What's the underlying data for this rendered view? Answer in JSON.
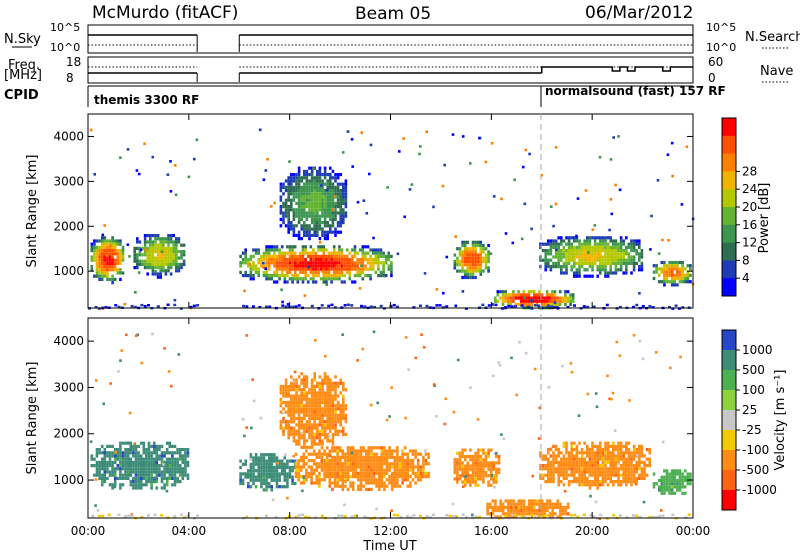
{
  "header": {
    "station": "McMurdo (fitACF)",
    "beam": "Beam 05",
    "date": "06/Mar/2012"
  },
  "strip_labels": {
    "nsky_1": "N.Sky",
    "nsearch_1": "N.Search",
    "freq_1": "Freq.",
    "freq_2": "[MHz]",
    "nave": "Nave",
    "cpid": "CPID"
  },
  "cpid_modes": [
    {
      "name": "themis 3300 RF",
      "start_hour": 0.0
    },
    {
      "name": "normalsound (fast) 157 RF",
      "start_hour": 18.0
    }
  ],
  "chart_data": [
    {
      "type": "line",
      "name": "noise",
      "y_left_ticks": [
        "10^5",
        "10^0"
      ],
      "y_right_ticks": [
        "10^5",
        "10^0"
      ],
      "series": [
        {
          "name": "N.Sky",
          "style": "solid",
          "segments": [
            [
              0,
              4.33
            ],
            [
              6,
              24
            ]
          ],
          "level_log10": 3.2
        },
        {
          "name": "N.Search",
          "style": "dotted",
          "segments": [
            [
              0,
              4.33
            ],
            [
              6,
              24
            ]
          ],
          "level_log10": 1.0
        }
      ]
    },
    {
      "type": "line",
      "name": "frequency-nave",
      "y_left_ticks": [
        "18",
        "8"
      ],
      "y_right_ticks": [
        "60",
        "0"
      ],
      "series": [
        {
          "name": "Freq",
          "style": "solid",
          "segments": [
            [
              0,
              4.33
            ],
            [
              6,
              18
            ]
          ],
          "value_mhz": 11.0
        },
        {
          "name": "Nave",
          "style": "dotted",
          "segments": [
            [
              0,
              4.33
            ],
            [
              6,
              24
            ]
          ],
          "value": 35
        }
      ]
    },
    {
      "type": "heatmap",
      "name": "power",
      "xlabel": "",
      "ylabel": "Slant Range [km]",
      "xlim": [
        0,
        24
      ],
      "ylim": [
        180,
        4500
      ],
      "y_ticks": [
        "1000",
        "2000",
        "3000",
        "4000"
      ],
      "colorbar": {
        "label": "Power [dB]",
        "ticks": [
          "4",
          "8",
          "12",
          "16",
          "20",
          "24",
          "28"
        ],
        "colors": [
          "#0000ff",
          "#1e3cb4",
          "#2d6e50",
          "#3c9650",
          "#64b432",
          "#b4c800",
          "#f0b400",
          "#ff8000",
          "#ff5000",
          "#ff0000"
        ]
      },
      "regions": [
        {
          "x0": 0.1,
          "x1": 1.4,
          "y0": 750,
          "y1": 1850,
          "peak": 28
        },
        {
          "x0": 1.8,
          "x1": 3.8,
          "y0": 900,
          "y1": 1900,
          "peak": 18
        },
        {
          "x0": 6.0,
          "x1": 12.0,
          "y0": 750,
          "y1": 1650,
          "peak": 28
        },
        {
          "x0": 7.6,
          "x1": 10.2,
          "y0": 1700,
          "y1": 3400,
          "peak": 12
        },
        {
          "x0": 14.5,
          "x1": 15.9,
          "y0": 850,
          "y1": 1750,
          "peak": 26
        },
        {
          "x0": 16.0,
          "x1": 19.2,
          "y0": 180,
          "y1": 650,
          "peak": 30
        },
        {
          "x0": 17.9,
          "x1": 22.0,
          "y0": 900,
          "y1": 1850,
          "peak": 18
        },
        {
          "x0": 22.4,
          "x1": 23.9,
          "y0": 700,
          "y1": 1300,
          "peak": 24
        }
      ]
    },
    {
      "type": "heatmap",
      "name": "velocity",
      "xlabel": "Time UT",
      "ylabel": "Slant Range [km]",
      "xlim": [
        0,
        24
      ],
      "ylim": [
        180,
        4500
      ],
      "x_ticks": [
        "00:00",
        "04:00",
        "08:00",
        "12:00",
        "16:00",
        "20:00",
        "00:00"
      ],
      "y_ticks": [
        "1000",
        "2000",
        "3000",
        "4000"
      ],
      "colorbar": {
        "label": "Velocity [m s⁻¹]",
        "ticks": [
          "1000",
          "500",
          "100",
          "25",
          "-25",
          "-100",
          "-500",
          "-1000"
        ],
        "colors": [
          "#2846c8",
          "#3c8c78",
          "#4caf50",
          "#8cd23c",
          "#c8c8c8",
          "#f5c800",
          "#ff8c14",
          "#ff6414",
          "#ff0000"
        ]
      },
      "regions": [
        {
          "x0": 0.1,
          "x1": 4.0,
          "y0": 800,
          "y1": 1900,
          "velocity": 300
        },
        {
          "x0": 6.0,
          "x1": 8.2,
          "y0": 800,
          "y1": 1650,
          "velocity": 350
        },
        {
          "x0": 8.2,
          "x1": 13.5,
          "y0": 800,
          "y1": 1800,
          "velocity": -250
        },
        {
          "x0": 7.6,
          "x1": 10.2,
          "y0": 1700,
          "y1": 3400,
          "velocity": -200
        },
        {
          "x0": 14.5,
          "x1": 16.3,
          "y0": 850,
          "y1": 1750,
          "velocity": -250
        },
        {
          "x0": 15.8,
          "x1": 19.0,
          "y0": 180,
          "y1": 650,
          "velocity": -250
        },
        {
          "x0": 17.9,
          "x1": 22.3,
          "y0": 850,
          "y1": 1900,
          "velocity": -250
        },
        {
          "x0": 22.4,
          "x1": 23.9,
          "y0": 700,
          "y1": 1300,
          "velocity": 60
        }
      ]
    }
  ]
}
